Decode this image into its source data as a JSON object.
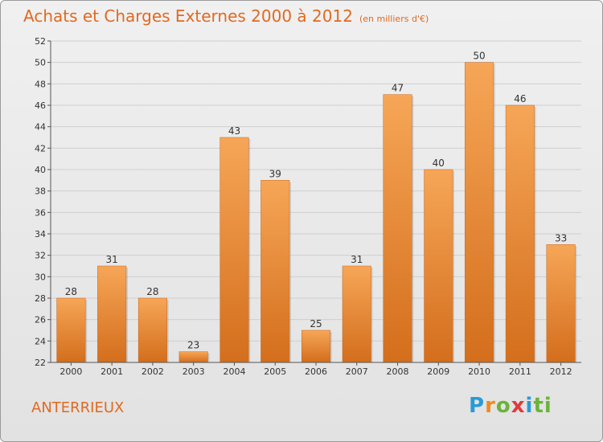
{
  "header": {
    "title": "Achats et Charges Externes 2000 à 2012",
    "subtitle": "(en milliers d'€)"
  },
  "footer": {
    "commune": "ANTERRIEUX",
    "logo": [
      "P",
      "r",
      "o",
      "x",
      "i",
      "ti"
    ]
  },
  "colors": {
    "accent": "#e06a22",
    "bar_top": "#f6a657",
    "bar_bottom": "#d36e1c"
  },
  "chart_data": {
    "type": "bar",
    "categories": [
      "2000",
      "2001",
      "2002",
      "2003",
      "2004",
      "2005",
      "2006",
      "2007",
      "2008",
      "2009",
      "2010",
      "2011",
      "2012"
    ],
    "values": [
      28,
      31,
      28,
      23,
      43,
      39,
      25,
      31,
      47,
      40,
      50,
      46,
      33
    ],
    "ylim": [
      22,
      52
    ],
    "yticks": [
      22,
      24,
      26,
      28,
      30,
      32,
      34,
      36,
      38,
      40,
      42,
      44,
      46,
      48,
      50,
      52
    ],
    "grid": true,
    "data_labels": true
  }
}
